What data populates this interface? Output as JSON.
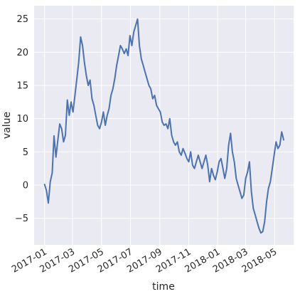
{
  "chart_data": {
    "type": "line",
    "style": "seaborn-darkgrid",
    "background_color": "#eaeaf2",
    "grid_color": "#ffffff",
    "line_color": "#4c72b0",
    "xlabel": "time",
    "ylabel": "value",
    "xlim": [
      "2016-12-10",
      "2018-06-10"
    ],
    "ylim": [
      -9,
      27
    ],
    "x_ticks": [
      "2017-01",
      "2017-03",
      "2017-05",
      "2017-07",
      "2017-09",
      "2017-11",
      "2018-01",
      "2018-03",
      "2018-05"
    ],
    "y_ticks": [
      -5,
      0,
      5,
      10,
      15,
      20,
      25
    ],
    "series": [
      {
        "x": [
          "2017-01-01",
          "2017-01-05",
          "2017-01-09",
          "2017-01-13",
          "2017-01-17",
          "2017-01-21",
          "2017-01-25",
          "2017-01-29",
          "2017-02-02",
          "2017-02-06",
          "2017-02-10",
          "2017-02-14",
          "2017-02-18",
          "2017-02-22",
          "2017-02-26",
          "2017-03-02",
          "2017-03-06",
          "2017-03-10",
          "2017-03-14",
          "2017-03-18",
          "2017-03-22",
          "2017-03-26",
          "2017-03-30",
          "2017-04-03",
          "2017-04-07",
          "2017-04-11",
          "2017-04-15",
          "2017-04-19",
          "2017-04-23",
          "2017-04-27",
          "2017-05-01",
          "2017-05-05",
          "2017-05-09",
          "2017-05-13",
          "2017-05-17",
          "2017-05-21",
          "2017-05-25",
          "2017-05-29",
          "2017-06-02",
          "2017-06-06",
          "2017-06-10",
          "2017-06-14",
          "2017-06-18",
          "2017-06-22",
          "2017-06-26",
          "2017-06-30",
          "2017-07-04",
          "2017-07-08",
          "2017-07-12",
          "2017-07-16",
          "2017-07-20",
          "2017-07-24",
          "2017-07-28",
          "2017-08-01",
          "2017-08-05",
          "2017-08-09",
          "2017-08-13",
          "2017-08-17",
          "2017-08-21",
          "2017-08-25",
          "2017-08-29",
          "2017-09-02",
          "2017-09-06",
          "2017-09-10",
          "2017-09-14",
          "2017-09-18",
          "2017-09-22",
          "2017-09-26",
          "2017-09-30",
          "2017-10-04",
          "2017-10-08",
          "2017-10-12",
          "2017-10-16",
          "2017-10-20",
          "2017-10-24",
          "2017-10-28",
          "2017-11-01",
          "2017-11-05",
          "2017-11-09",
          "2017-11-13",
          "2017-11-17",
          "2017-11-21",
          "2017-11-25",
          "2017-11-29",
          "2017-12-03",
          "2017-12-07",
          "2017-12-11",
          "2017-12-15",
          "2017-12-19",
          "2017-12-23",
          "2017-12-27",
          "2017-12-31",
          "2018-01-04",
          "2018-01-08",
          "2018-01-12",
          "2018-01-16",
          "2018-01-20",
          "2018-01-24",
          "2018-01-28",
          "2018-02-01",
          "2018-02-05",
          "2018-02-09",
          "2018-02-13",
          "2018-02-17",
          "2018-02-21",
          "2018-02-25",
          "2018-03-01",
          "2018-03-05",
          "2018-03-09",
          "2018-03-13",
          "2018-03-17",
          "2018-03-21",
          "2018-03-25",
          "2018-03-29",
          "2018-04-02",
          "2018-04-06",
          "2018-04-10",
          "2018-04-14",
          "2018-04-18",
          "2018-04-22",
          "2018-04-26",
          "2018-04-30",
          "2018-05-04",
          "2018-05-08",
          "2018-05-12",
          "2018-05-16",
          "2018-05-20"
        ],
        "values": [
          0.1,
          -0.8,
          -2.7,
          0.5,
          1.8,
          7.4,
          4.2,
          6.8,
          9.2,
          8.5,
          6.5,
          7.5,
          12.8,
          10.5,
          12.5,
          11.0,
          13.5,
          16.0,
          18.5,
          22.3,
          21.0,
          18.5,
          16.5,
          15.0,
          15.8,
          13.0,
          12.0,
          10.5,
          9.0,
          8.5,
          9.5,
          11.0,
          9.0,
          10.5,
          11.5,
          13.5,
          14.5,
          16.0,
          18.0,
          19.5,
          21.0,
          20.5,
          19.8,
          20.5,
          19.5,
          22.5,
          21.0,
          23.0,
          24.0,
          25.0,
          21.0,
          19.0,
          18.0,
          17.0,
          16.0,
          15.0,
          14.5,
          13.0,
          13.5,
          12.0,
          11.5,
          11.0,
          9.5,
          9.0,
          9.2,
          8.5,
          10.0,
          7.5,
          6.5,
          6.0,
          6.5,
          5.0,
          4.5,
          5.5,
          4.8,
          4.0,
          3.5,
          5.0,
          3.0,
          2.5,
          3.5,
          4.5,
          3.5,
          2.5,
          3.5,
          4.5,
          3.0,
          0.5,
          2.5,
          1.5,
          0.8,
          2.0,
          3.5,
          4.0,
          2.5,
          1.0,
          2.5,
          6.0,
          7.8,
          5.0,
          3.5,
          1.0,
          0.0,
          -1.0,
          -2.0,
          -1.5,
          1.0,
          2.0,
          3.5,
          -1.0,
          -3.5,
          -4.5,
          -5.5,
          -6.5,
          -7.2,
          -7.0,
          -5.5,
          -2.5,
          -0.5,
          0.5,
          2.5,
          4.5,
          6.5,
          5.5,
          6.0,
          8.0,
          6.8
        ]
      }
    ]
  }
}
